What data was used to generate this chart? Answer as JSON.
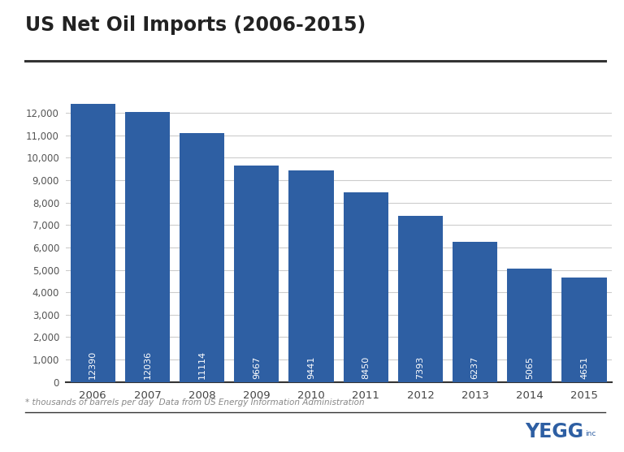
{
  "title": "US Net Oil Imports (2006-2015)",
  "years": [
    2006,
    2007,
    2008,
    2009,
    2010,
    2011,
    2012,
    2013,
    2014,
    2015
  ],
  "values": [
    12390,
    12036,
    11114,
    9667,
    9441,
    8450,
    7393,
    6237,
    5065,
    4651
  ],
  "bar_color": "#2E5FA3",
  "background_color": "#FFFFFF",
  "yticks": [
    0,
    1000,
    2000,
    3000,
    4000,
    5000,
    6000,
    7000,
    8000,
    9000,
    10000,
    11000,
    12000
  ],
  "ylim": [
    0,
    12600
  ],
  "footnote": "* thousands of barrels per day  Data from US Energy Information Administration",
  "footnote_color": "#888888",
  "title_color": "#222222",
  "tick_label_color": "#555555",
  "grid_color": "#CCCCCC",
  "bar_label_color": "#FFFFFF",
  "xlabel_color": "#444444",
  "yegg_text": "YEGG",
  "yegg_inc": "inc",
  "yegg_color": "#2E5FA3",
  "separator_color": "#333333"
}
